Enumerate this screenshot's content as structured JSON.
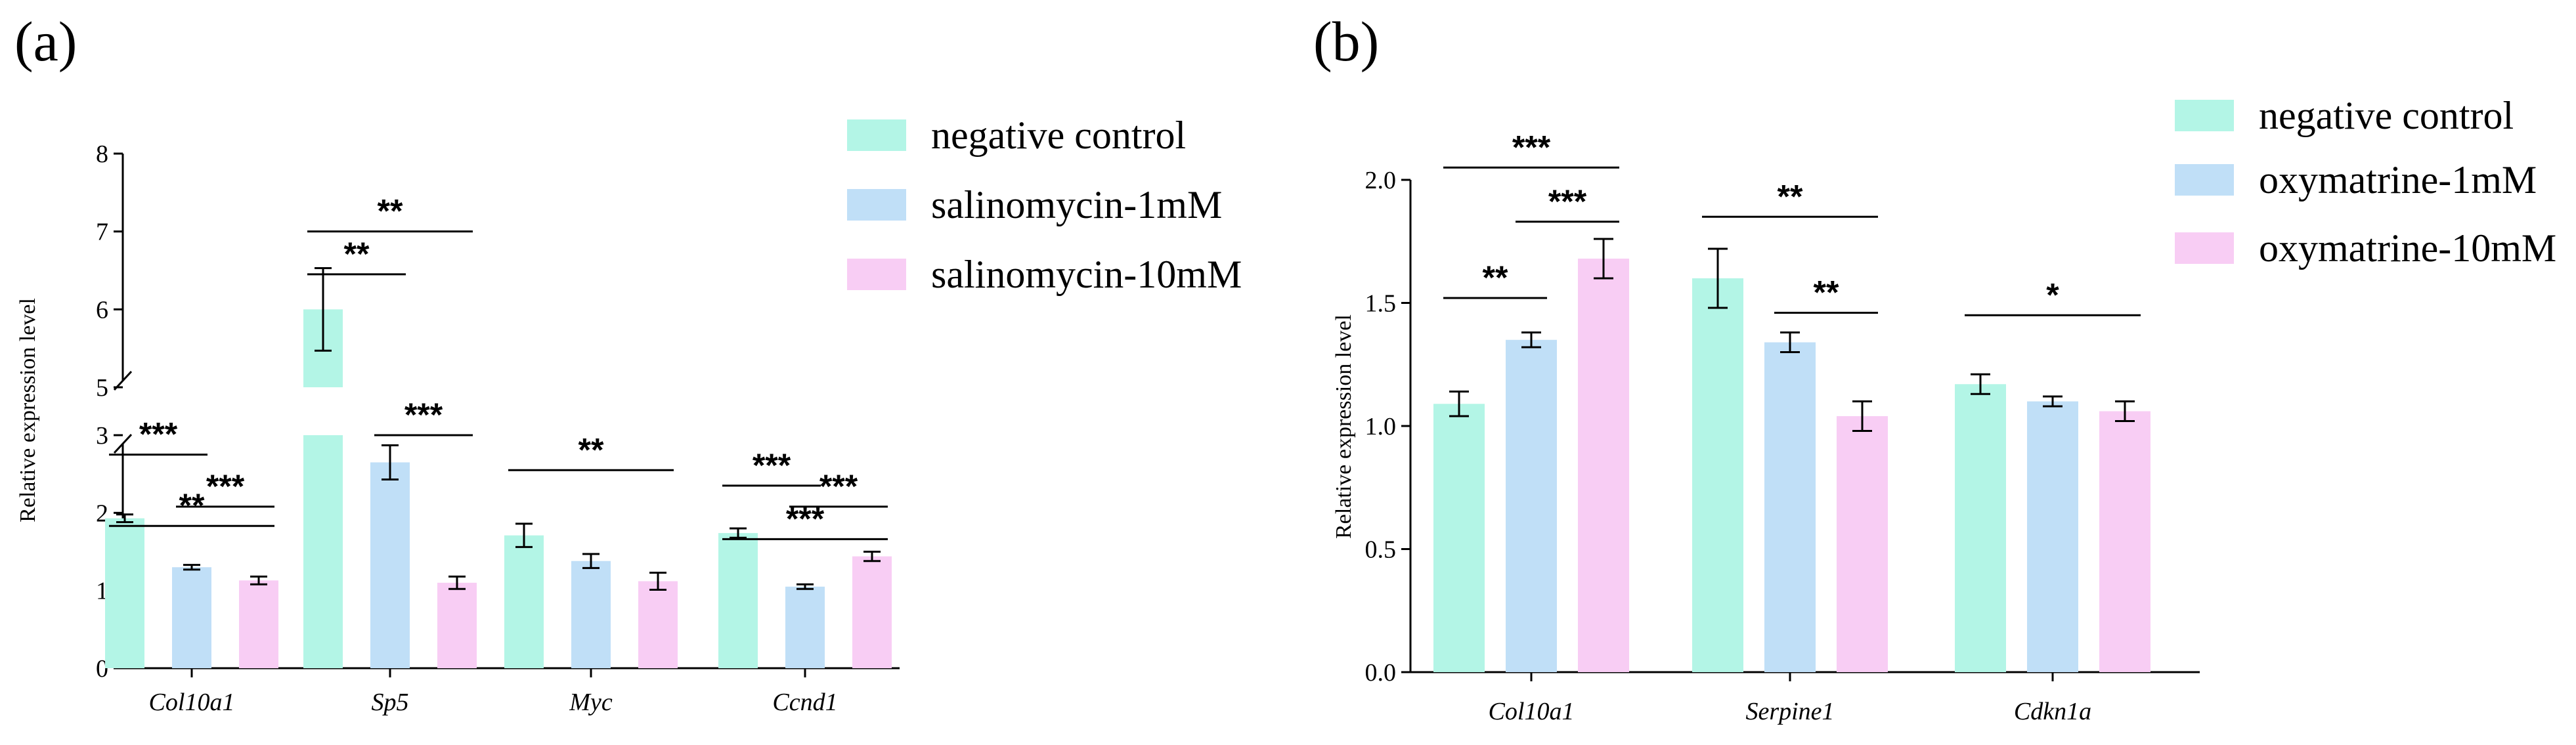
{
  "chart_data": [
    {
      "panel": "(a)",
      "type": "bar",
      "ylabel": "Relative expression level",
      "categories": [
        "Col10a1",
        "Sp5",
        "Myc",
        "Ccnd1"
      ],
      "axis_break": [
        3,
        5
      ],
      "ylim": [
        0,
        8
      ],
      "yticks": [
        "0",
        "1",
        "2",
        "3",
        "5",
        "6",
        "7",
        "8"
      ],
      "series": [
        {
          "name": "negative control",
          "color": "#b3f5e6",
          "values": [
            1.93,
            6.0,
            1.71,
            1.74
          ],
          "errors": [
            0.05,
            0.53,
            0.15,
            0.06
          ]
        },
        {
          "name": "salinomycin-1mM",
          "color": "#c0dff7",
          "values": [
            1.3,
            2.65,
            1.38,
            1.05
          ],
          "errors": [
            0.03,
            0.22,
            0.09,
            0.03
          ]
        },
        {
          "name": "salinomycin-10mM",
          "color": "#f8cdf4",
          "values": [
            1.13,
            1.1,
            1.12,
            1.44
          ],
          "errors": [
            0.05,
            0.08,
            0.11,
            0.06
          ]
        }
      ],
      "significance": [
        {
          "category": 0,
          "from": 0,
          "to": 2,
          "label": "**",
          "y": 3.22
        },
        {
          "category": 0,
          "from": 0,
          "to": 1,
          "label": "***",
          "y": 2.75
        },
        {
          "category": 0,
          "from": 1,
          "to": 2,
          "label": "***",
          "y": 2.08
        },
        {
          "category": 1,
          "from": 0,
          "to": 2,
          "label": "**",
          "y": 7.0
        },
        {
          "category": 1,
          "from": 0,
          "to": 1,
          "label": "**",
          "y": 6.45
        },
        {
          "category": 1,
          "from": 1,
          "to": 2,
          "label": "***",
          "y": 3.0
        },
        {
          "category": 2,
          "from": 0,
          "to": 2,
          "label": "**",
          "y": 2.55
        },
        {
          "category": 3,
          "from": 0,
          "to": 2,
          "label": "***",
          "y": 3.05
        },
        {
          "category": 3,
          "from": 0,
          "to": 1,
          "label": "***",
          "y": 2.35
        },
        {
          "category": 3,
          "from": 1,
          "to": 2,
          "label": "***",
          "y": 2.08
        }
      ]
    },
    {
      "panel": "(b)",
      "type": "bar",
      "ylabel": "Relative expression level",
      "categories": [
        "Col10a1",
        "Serpine1",
        "Cdkn1a"
      ],
      "ylim": [
        0,
        2.0
      ],
      "yticks": [
        "0.0",
        "0.5",
        "1.0",
        "1.5",
        "2.0"
      ],
      "series": [
        {
          "name": "negative control",
          "color": "#b3f5e6",
          "values": [
            1.09,
            1.6,
            1.17
          ],
          "errors": [
            0.05,
            0.12,
            0.04
          ]
        },
        {
          "name": "oxymatrine-1mM",
          "color": "#c0dff7",
          "values": [
            1.35,
            1.34,
            1.1
          ],
          "errors": [
            0.03,
            0.04,
            0.02
          ]
        },
        {
          "name": "oxymatrine-10mM",
          "color": "#f8cdf4",
          "values": [
            1.68,
            1.04,
            1.06
          ],
          "errors": [
            0.08,
            0.06,
            0.04
          ]
        }
      ],
      "significance": [
        {
          "category": 0,
          "from": 0,
          "to": 2,
          "label": "***",
          "y": 2.05
        },
        {
          "category": 0,
          "from": 1,
          "to": 2,
          "label": "***",
          "y": 1.83
        },
        {
          "category": 0,
          "from": 0,
          "to": 1,
          "label": "**",
          "y": 1.52
        },
        {
          "category": 1,
          "from": 0,
          "to": 2,
          "label": "**",
          "y": 1.85
        },
        {
          "category": 1,
          "from": 1,
          "to": 2,
          "label": "**",
          "y": 1.46
        },
        {
          "category": 2,
          "from": 0,
          "to": 2,
          "label": "*",
          "y": 1.45
        }
      ]
    }
  ]
}
